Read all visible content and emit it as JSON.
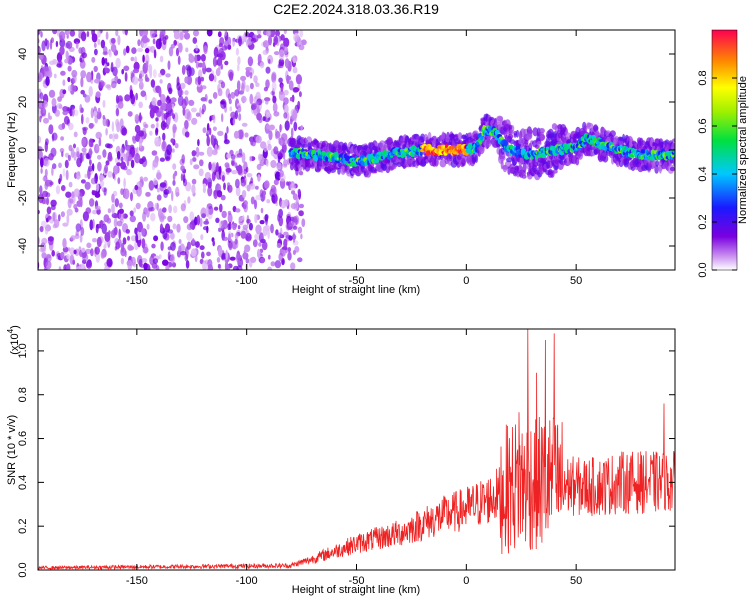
{
  "title": "C2E2.2024.318.03.36.R19",
  "chart_data": [
    {
      "type": "heatmap",
      "xlabel": "Height of straight line (km)",
      "ylabel": "Frequency (Hz)",
      "xlim": [
        -195,
        95
      ],
      "ylim": [
        -50,
        50
      ],
      "xticks": [
        -150,
        -100,
        -50,
        0,
        50
      ],
      "yticks": [
        -40,
        -20,
        0,
        20,
        40
      ],
      "noise_region": [
        -195,
        -75
      ],
      "signal_center_freq": [
        {
          "x": -80,
          "y": -1
        },
        {
          "x": -70,
          "y": -2
        },
        {
          "x": -60,
          "y": -3
        },
        {
          "x": -50,
          "y": -5
        },
        {
          "x": -40,
          "y": -3
        },
        {
          "x": -30,
          "y": -1
        },
        {
          "x": -20,
          "y": 0
        },
        {
          "x": -10,
          "y": 0
        },
        {
          "x": 0,
          "y": 0
        },
        {
          "x": 5,
          "y": 1
        },
        {
          "x": 8,
          "y": 8
        },
        {
          "x": 12,
          "y": 8
        },
        {
          "x": 20,
          "y": 0
        },
        {
          "x": 30,
          "y": -2
        },
        {
          "x": 40,
          "y": 0
        },
        {
          "x": 50,
          "y": 1
        },
        {
          "x": 55,
          "y": 5
        },
        {
          "x": 60,
          "y": 3
        },
        {
          "x": 70,
          "y": 0
        },
        {
          "x": 80,
          "y": -2
        },
        {
          "x": 95,
          "y": -2
        }
      ],
      "peak_region": [
        -20,
        0
      ],
      "colorbar": {
        "label": "Normalized spectral amplitude",
        "ticks": [
          "0.0",
          "0.2",
          "0.4",
          "0.6",
          "0.8"
        ],
        "range": [
          0,
          1
        ]
      }
    },
    {
      "type": "line",
      "xlabel": "Height of straight line (km)",
      "ylabel": "SNR (10 * v/v)",
      "scale_label": "(x10",
      "scale_exp": "4",
      "scale_close": ")",
      "xlim": [
        -195,
        95
      ],
      "ylim": [
        0,
        1.1
      ],
      "xticks": [
        -150,
        -100,
        -50,
        0,
        50
      ],
      "yticks": [
        "0.0",
        "0.2",
        "0.4",
        "0.6",
        "0.8",
        "1.0"
      ],
      "color": "#ee2222",
      "trend": [
        {
          "x": -195,
          "y": 0.01
        },
        {
          "x": -80,
          "y": 0.02
        },
        {
          "x": -70,
          "y": 0.05
        },
        {
          "x": -50,
          "y": 0.12
        },
        {
          "x": -30,
          "y": 0.17
        },
        {
          "x": -10,
          "y": 0.25
        },
        {
          "x": 0,
          "y": 0.28
        },
        {
          "x": 10,
          "y": 0.32
        },
        {
          "x": 20,
          "y": 0.38
        },
        {
          "x": 30,
          "y": 0.4
        },
        {
          "x": 40,
          "y": 0.4
        },
        {
          "x": 50,
          "y": 0.38
        },
        {
          "x": 60,
          "y": 0.38
        },
        {
          "x": 70,
          "y": 0.4
        },
        {
          "x": 80,
          "y": 0.4
        },
        {
          "x": 95,
          "y": 0.4
        }
      ],
      "peaks": [
        {
          "x": 28,
          "y": 1.1
        },
        {
          "x": 32,
          "y": 0.9
        },
        {
          "x": 36,
          "y": 1.05
        },
        {
          "x": 40,
          "y": 1.08
        },
        {
          "x": 24,
          "y": 0.72
        },
        {
          "x": 90,
          "y": 0.76
        }
      ]
    }
  ]
}
